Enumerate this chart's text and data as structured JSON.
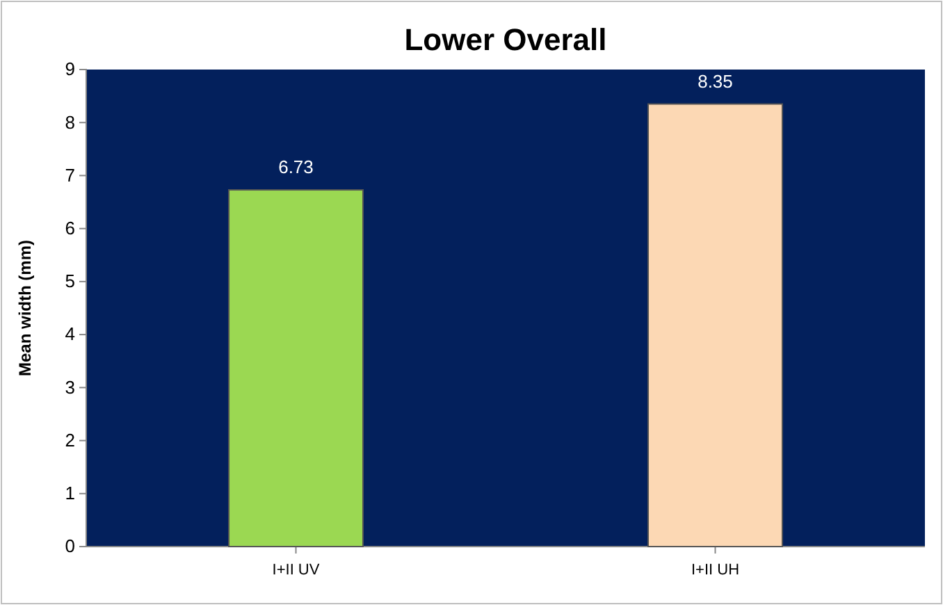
{
  "chart_data": {
    "type": "bar",
    "title": "Lower Overall",
    "ylabel": "Mean width (mm)",
    "categories": [
      "I+II UV",
      "I+II UH"
    ],
    "values": [
      6.73,
      8.35
    ],
    "colors": [
      "#9bd852",
      "#fcd8b4"
    ],
    "ylim": [
      0,
      9
    ],
    "yticks": [
      0,
      1,
      2,
      3,
      4,
      5,
      6,
      7,
      8,
      9
    ],
    "data_labels": true
  }
}
